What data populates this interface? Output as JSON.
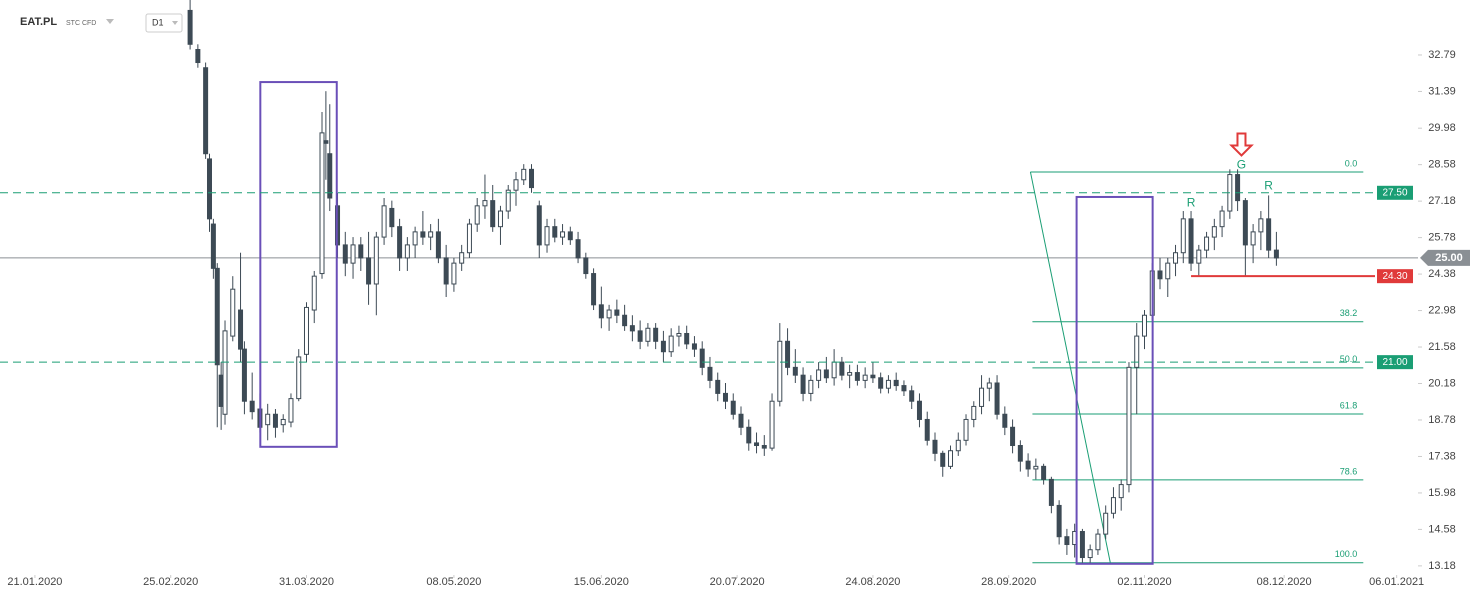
{
  "chart_data": {
    "type": "candlestick",
    "symbol": "EAT.PL",
    "instrument": "STC CFD",
    "interval": "D1",
    "up_color": "#ffffff",
    "down_color": "#3d4a55",
    "xlim": [
      -9,
      356.5
    ],
    "ylim": [
      12.83,
      34.9
    ],
    "xticks": [
      {
        "value": 0,
        "label": "21.01.2020"
      },
      {
        "value": 35,
        "label": "25.02.2020"
      },
      {
        "value": 70,
        "label": "31.03.2020"
      },
      {
        "value": 108,
        "label": "08.05.2020"
      },
      {
        "value": 146,
        "label": "15.06.2020"
      },
      {
        "value": 181,
        "label": "20.07.2020"
      },
      {
        "value": 216,
        "label": "24.08.2020"
      },
      {
        "value": 251,
        "label": "28.09.2020"
      },
      {
        "value": 286,
        "label": "02.11.2020"
      },
      {
        "value": 322,
        "label": "08.12.2020"
      },
      {
        "value": 351,
        "label": "06.01.2021"
      }
    ],
    "yticks": [
      32.79,
      31.39,
      29.98,
      28.58,
      27.18,
      25.78,
      24.38,
      22.98,
      21.58,
      20.18,
      18.78,
      17.38,
      15.98,
      14.58,
      13.18
    ],
    "x": [
      40,
      42,
      44,
      45,
      46,
      47,
      48,
      49,
      51,
      53,
      54,
      56,
      58,
      60,
      62,
      64,
      66,
      68,
      70,
      72,
      74,
      75,
      76,
      78,
      80,
      82,
      84,
      86,
      88,
      90,
      92,
      94,
      96,
      98,
      100,
      102,
      104,
      106,
      108,
      110,
      112,
      114,
      116,
      118,
      120,
      122,
      124,
      126,
      128,
      130,
      132,
      134,
      136,
      138,
      140,
      142,
      144,
      146,
      148,
      150,
      152,
      154,
      156,
      158,
      160,
      162,
      164,
      166,
      168,
      170,
      172,
      174,
      176,
      178,
      180,
      182,
      184,
      186,
      188,
      190,
      192,
      194,
      196,
      198,
      200,
      202,
      204,
      206,
      208,
      210,
      212,
      214,
      216,
      218,
      220,
      222,
      224,
      226,
      228,
      230,
      232,
      234,
      236,
      238,
      240,
      242,
      244,
      246,
      248,
      250,
      252,
      254,
      256,
      258,
      260,
      262,
      264,
      266,
      268,
      270,
      272,
      274,
      276,
      278,
      280,
      282,
      284,
      286,
      288,
      290,
      292,
      294,
      296,
      298,
      300,
      302,
      304,
      306,
      308,
      310,
      312,
      314,
      316,
      318,
      320
    ],
    "ohlc": [
      [
        34.5,
        34.9,
        33.0,
        33.2
      ],
      [
        33.0,
        33.2,
        32.3,
        32.5
      ],
      [
        32.3,
        32.5,
        28.8,
        29.0
      ],
      [
        28.8,
        29.0,
        26.0,
        26.5
      ],
      [
        26.3,
        26.5,
        24.2,
        24.6
      ],
      [
        24.6,
        24.8,
        18.5,
        20.9
      ],
      [
        20.5,
        21.0,
        18.4,
        19.3
      ],
      [
        19.0,
        22.6,
        18.6,
        22.2
      ],
      [
        22.0,
        24.3,
        21.8,
        23.8
      ],
      [
        23.0,
        25.2,
        21.0,
        21.5
      ],
      [
        21.5,
        21.8,
        19.0,
        19.5
      ],
      [
        19.5,
        20.6,
        18.8,
        19.1
      ],
      [
        19.2,
        19.8,
        18.3,
        18.5
      ],
      [
        18.6,
        19.4,
        18.0,
        19.0
      ],
      [
        19.0,
        19.2,
        18.1,
        18.5
      ],
      [
        18.6,
        19.0,
        18.3,
        18.8
      ],
      [
        18.7,
        19.8,
        18.5,
        19.6
      ],
      [
        19.6,
        21.5,
        19.5,
        21.2
      ],
      [
        21.3,
        23.3,
        21.0,
        23.1
      ],
      [
        23.0,
        24.5,
        22.5,
        24.3
      ],
      [
        24.4,
        30.6,
        24.2,
        29.8
      ],
      [
        29.5,
        31.4,
        28.0,
        29.4
      ],
      [
        29.0,
        30.9,
        26.8,
        27.3
      ],
      [
        27.0,
        27.5,
        25.0,
        25.5
      ],
      [
        25.5,
        26.0,
        24.3,
        24.8
      ],
      [
        24.8,
        25.8,
        24.2,
        25.5
      ],
      [
        25.5,
        25.8,
        24.5,
        25.0
      ],
      [
        25.0,
        26.0,
        23.2,
        24.0
      ],
      [
        24.0,
        26.0,
        22.8,
        25.8
      ],
      [
        25.8,
        27.3,
        25.5,
        27.0
      ],
      [
        26.9,
        27.2,
        25.8,
        26.2
      ],
      [
        26.2,
        26.5,
        24.5,
        25.0
      ],
      [
        25.0,
        25.8,
        24.5,
        25.5
      ],
      [
        25.5,
        26.2,
        25.0,
        26.0
      ],
      [
        26.0,
        26.8,
        25.5,
        25.8
      ],
      [
        25.8,
        26.3,
        25.3,
        26.0
      ],
      [
        26.0,
        26.5,
        24.8,
        25.0
      ],
      [
        25.0,
        25.5,
        23.5,
        24.0
      ],
      [
        24.0,
        25.0,
        23.7,
        24.8
      ],
      [
        24.8,
        25.5,
        24.5,
        25.2
      ],
      [
        25.2,
        26.5,
        25.0,
        26.3
      ],
      [
        26.3,
        27.3,
        26.0,
        27.0
      ],
      [
        27.0,
        28.2,
        26.5,
        27.2
      ],
      [
        27.2,
        27.8,
        26.0,
        26.2
      ],
      [
        26.2,
        27.0,
        25.5,
        26.8
      ],
      [
        26.8,
        27.8,
        26.5,
        27.6
      ],
      [
        27.6,
        28.3,
        27.0,
        28.0
      ],
      [
        28.0,
        28.6,
        27.8,
        28.4
      ],
      [
        28.4,
        28.6,
        27.5,
        27.7
      ],
      [
        27.0,
        27.2,
        25.0,
        25.5
      ],
      [
        25.5,
        26.5,
        25.2,
        26.2
      ],
      [
        26.2,
        26.5,
        25.6,
        25.8
      ],
      [
        25.8,
        26.3,
        25.5,
        26.0
      ],
      [
        26.0,
        26.2,
        25.5,
        25.7
      ],
      [
        25.7,
        26.0,
        24.8,
        25.0
      ],
      [
        25.0,
        25.2,
        24.2,
        24.4
      ],
      [
        24.4,
        24.6,
        23.0,
        23.2
      ],
      [
        23.2,
        23.9,
        22.3,
        22.7
      ],
      [
        22.7,
        23.2,
        22.2,
        23.0
      ],
      [
        23.0,
        23.4,
        22.5,
        22.8
      ],
      [
        22.8,
        23.2,
        22.2,
        22.4
      ],
      [
        22.4,
        22.8,
        21.8,
        22.2
      ],
      [
        22.2,
        22.6,
        21.5,
        21.8
      ],
      [
        21.8,
        22.5,
        21.6,
        22.3
      ],
      [
        22.3,
        22.5,
        21.5,
        21.8
      ],
      [
        21.8,
        22.2,
        21.0,
        21.4
      ],
      [
        21.4,
        22.3,
        21.2,
        22.0
      ],
      [
        22.0,
        22.4,
        21.6,
        22.1
      ],
      [
        22.1,
        22.4,
        21.5,
        21.7
      ],
      [
        21.7,
        22.0,
        21.2,
        21.5
      ],
      [
        21.5,
        21.8,
        20.5,
        20.8
      ],
      [
        20.8,
        21.2,
        20.0,
        20.3
      ],
      [
        20.3,
        20.6,
        19.5,
        19.8
      ],
      [
        19.8,
        20.2,
        19.2,
        19.5
      ],
      [
        19.5,
        19.8,
        18.8,
        19.0
      ],
      [
        19.0,
        19.3,
        18.2,
        18.5
      ],
      [
        18.5,
        18.8,
        17.6,
        17.9
      ],
      [
        17.9,
        18.3,
        17.5,
        17.8
      ],
      [
        17.8,
        18.2,
        17.4,
        17.7
      ],
      [
        17.7,
        19.8,
        17.6,
        19.5
      ],
      [
        19.5,
        22.5,
        19.3,
        21.8
      ],
      [
        21.8,
        22.3,
        20.5,
        20.8
      ],
      [
        20.8,
        21.5,
        20.2,
        20.5
      ],
      [
        20.5,
        20.8,
        19.5,
        19.8
      ],
      [
        19.8,
        20.5,
        19.5,
        20.3
      ],
      [
        20.3,
        21.0,
        20.0,
        20.7
      ],
      [
        20.7,
        21.2,
        20.2,
        20.4
      ],
      [
        20.4,
        21.5,
        20.1,
        21.0
      ],
      [
        21.0,
        21.2,
        20.3,
        20.5
      ],
      [
        20.5,
        20.9,
        20.0,
        20.6
      ],
      [
        20.6,
        20.9,
        20.1,
        20.3
      ],
      [
        20.3,
        20.8,
        20.0,
        20.5
      ],
      [
        20.5,
        21.0,
        20.2,
        20.4
      ],
      [
        20.4,
        20.6,
        19.8,
        20.0
      ],
      [
        20.0,
        20.5,
        19.8,
        20.3
      ],
      [
        20.3,
        20.6,
        19.9,
        20.1
      ],
      [
        20.1,
        20.3,
        19.7,
        19.9
      ],
      [
        19.9,
        20.1,
        19.2,
        19.5
      ],
      [
        19.5,
        19.8,
        18.5,
        18.8
      ],
      [
        18.8,
        19.1,
        17.8,
        18.0
      ],
      [
        18.0,
        18.3,
        17.2,
        17.5
      ],
      [
        17.5,
        17.6,
        16.6,
        17.0
      ],
      [
        17.0,
        17.8,
        16.9,
        17.6
      ],
      [
        17.6,
        18.3,
        17.4,
        18.0
      ],
      [
        18.0,
        19.0,
        17.8,
        18.8
      ],
      [
        18.8,
        19.5,
        18.5,
        19.3
      ],
      [
        19.3,
        20.5,
        19.0,
        20.0
      ],
      [
        20.0,
        20.4,
        19.5,
        20.2
      ],
      [
        20.2,
        20.5,
        18.8,
        19.0
      ],
      [
        19.0,
        19.3,
        18.2,
        18.5
      ],
      [
        18.5,
        18.8,
        17.5,
        17.8
      ],
      [
        17.8,
        18.0,
        16.8,
        17.2
      ],
      [
        17.2,
        17.5,
        16.6,
        16.9
      ],
      [
        16.9,
        17.3,
        16.5,
        17.0
      ],
      [
        17.0,
        17.1,
        16.3,
        16.5
      ],
      [
        16.5,
        16.6,
        15.2,
        15.5
      ],
      [
        15.5,
        15.7,
        14.0,
        14.3
      ],
      [
        14.3,
        14.6,
        13.6,
        14.0
      ],
      [
        14.0,
        14.8,
        13.5,
        14.5
      ],
      [
        14.5,
        14.6,
        13.3,
        13.5
      ],
      [
        13.5,
        14.0,
        13.3,
        13.8
      ],
      [
        13.8,
        14.6,
        13.6,
        14.4
      ],
      [
        14.4,
        15.5,
        14.2,
        15.2
      ],
      [
        15.2,
        16.2,
        15.0,
        15.8
      ],
      [
        15.8,
        16.5,
        15.3,
        16.3
      ],
      [
        16.3,
        21.0,
        16.0,
        20.8
      ],
      [
        20.8,
        22.5,
        19.0,
        22.0
      ],
      [
        22.0,
        23.0,
        21.5,
        22.8
      ],
      [
        22.8,
        24.8,
        22.6,
        24.5
      ],
      [
        24.5,
        25.0,
        23.8,
        24.2
      ],
      [
        24.2,
        25.0,
        23.5,
        24.8
      ],
      [
        24.8,
        25.5,
        24.3,
        25.2
      ],
      [
        25.2,
        26.8,
        24.8,
        26.5
      ],
      [
        26.5,
        26.8,
        24.5,
        24.8
      ],
      [
        24.8,
        25.5,
        24.3,
        25.3
      ],
      [
        25.3,
        26.0,
        25.0,
        25.8
      ],
      [
        25.8,
        26.5,
        25.3,
        26.2
      ],
      [
        26.2,
        27.0,
        25.8,
        26.8
      ],
      [
        26.8,
        28.4,
        26.5,
        28.2
      ],
      [
        28.2,
        28.4,
        26.8,
        27.2
      ],
      [
        27.2,
        27.3,
        24.3,
        25.5
      ],
      [
        25.5,
        26.3,
        24.8,
        26.0
      ],
      [
        26.0,
        26.8,
        25.3,
        26.5
      ],
      [
        26.5,
        27.4,
        25.0,
        25.3
      ],
      [
        25.3,
        26.0,
        24.7,
        25.0
      ]
    ],
    "current_price": {
      "value": 25,
      "label": "25.00"
    },
    "levels": [
      {
        "value": 27.5,
        "label": "27.50",
        "color": "#1a9e74",
        "dashed": true
      },
      {
        "value": 21,
        "label": "21.00",
        "color": "#1a9e74",
        "dashed": true
      },
      {
        "value": 24.3,
        "label": "24.30",
        "color": "#e03a3a",
        "dashed": false,
        "from": 298
      }
    ],
    "boxes": [
      {
        "x": [
          58.1,
          77.8
        ],
        "y": [
          17.75,
          31.75
        ]
      },
      {
        "x": [
          268.5,
          288.1
        ],
        "y": [
          13.26,
          27.34
        ]
      }
    ],
    "fibonacci": {
      "x": [
        256.6,
        342.4
      ],
      "color": "#1a9e74",
      "levels": [
        {
          "label": "0.0",
          "price": 28.3
        },
        {
          "label": "38.2",
          "price": 22.55
        },
        {
          "label": "50.0",
          "price": 20.78
        },
        {
          "label": "61.8",
          "price": 19.01
        },
        {
          "label": "78.6",
          "price": 16.48
        },
        {
          "label": "100.0",
          "price": 13.3
        }
      ]
    },
    "annotations": [
      {
        "text": "R",
        "x": 298,
        "y": 27.1
      },
      {
        "text": "G",
        "x": 311,
        "y": 28.55
      },
      {
        "text": "R",
        "x": 318,
        "y": 27.75
      }
    ]
  }
}
